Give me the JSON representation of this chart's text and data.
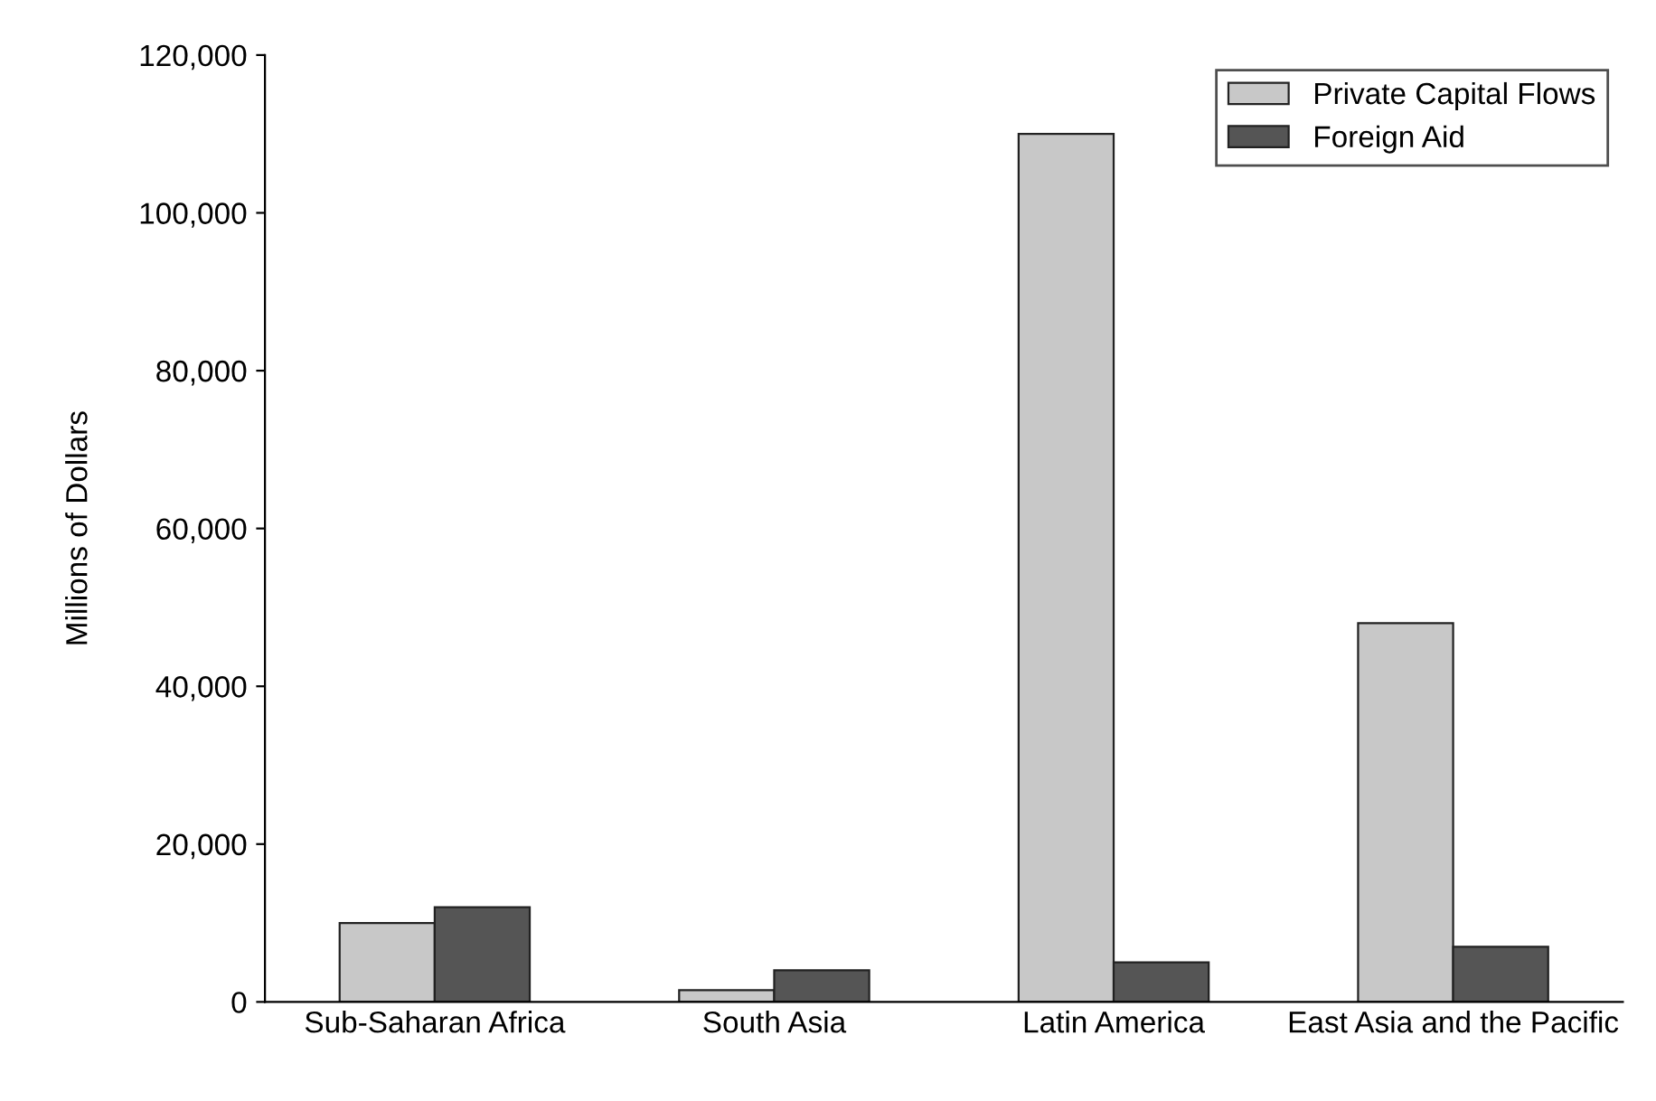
{
  "chart_data": {
    "type": "bar",
    "ylabel": "Millions of Dollars",
    "categories": [
      "Sub-Saharan Africa",
      "South Asia",
      "Latin America",
      "East Asia and the Pacific"
    ],
    "series": [
      {
        "name": "Private Capital Flows",
        "color": "#c8c8c8",
        "values": [
          10000,
          1500,
          110000,
          48000
        ]
      },
      {
        "name": "Foreign Aid",
        "color": "#555555",
        "values": [
          12000,
          4000,
          5000,
          7000
        ]
      }
    ],
    "ylim": [
      0,
      120000
    ],
    "yticks": [
      {
        "value": 0,
        "label": "0"
      },
      {
        "value": 20000,
        "label": "20,000"
      },
      {
        "value": 40000,
        "label": "40,000"
      },
      {
        "value": 60000,
        "label": "60,000"
      },
      {
        "value": 80000,
        "label": "80,000"
      },
      {
        "value": 100000,
        "label": "100,000"
      },
      {
        "value": 120000,
        "label": "120,000"
      }
    ],
    "legend": "top right",
    "grid": false
  }
}
